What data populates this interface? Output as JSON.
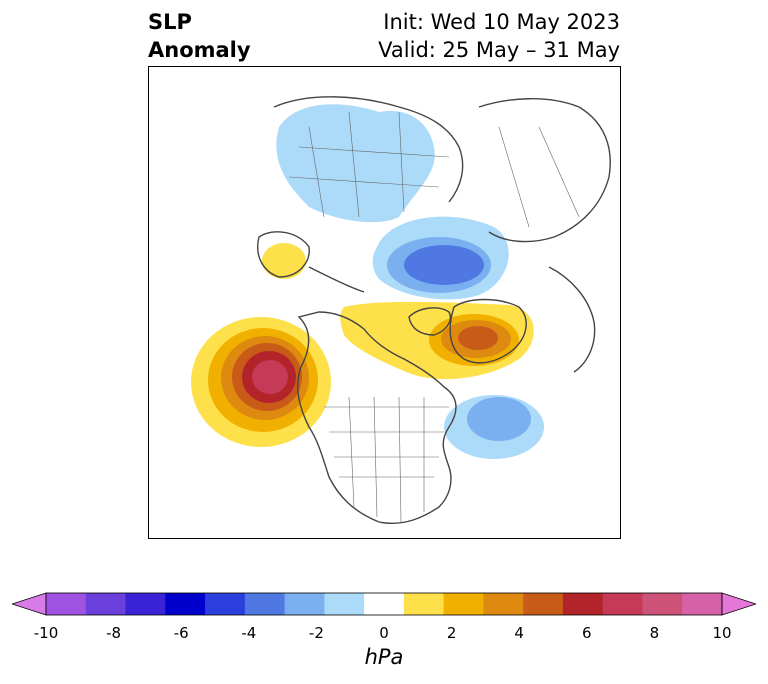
{
  "header": {
    "variable_line1": "SLP",
    "variable_line2": "Anomaly",
    "init": "Init: Wed 10 May 2023",
    "valid": "Valid: 25 May – 31 May"
  },
  "map": {
    "projection": "north-polar stereographic",
    "region": "Northern Hemisphere / North America",
    "anomaly_centers": [
      {
        "name": "northeast-pacific-high",
        "type": "positive",
        "peak_hpa": 9
      },
      {
        "name": "greenland-high",
        "type": "positive",
        "peak_hpa": 5
      },
      {
        "name": "alaska-weak-high",
        "type": "positive",
        "peak_hpa": 1.5
      },
      {
        "name": "arctic-low",
        "type": "negative",
        "peak_hpa": -4
      },
      {
        "name": "north-atlantic-low",
        "type": "negative",
        "peak_hpa": -3
      },
      {
        "name": "siberia-weak-low",
        "type": "negative",
        "peak_hpa": -1.5
      }
    ]
  },
  "colorbar": {
    "unit": "hPa",
    "min": -10,
    "max": 10,
    "extend": "both",
    "ticks": [
      "-10",
      "-8",
      "-6",
      "-4",
      "-2",
      "0",
      "2",
      "4",
      "6",
      "8",
      "10"
    ],
    "colors": [
      "#d67be8",
      "#a052e0",
      "#6a3fdb",
      "#3a22d6",
      "#0000cc",
      "#2a3fdc",
      "#4f78e3",
      "#7bb0f0",
      "#acdaf9",
      "#ffffff",
      "#fde04a",
      "#f1b000",
      "#de8a10",
      "#c95b19",
      "#b3242a",
      "#c53a56",
      "#cc5278",
      "#d661a6",
      "#e577d9"
    ]
  }
}
